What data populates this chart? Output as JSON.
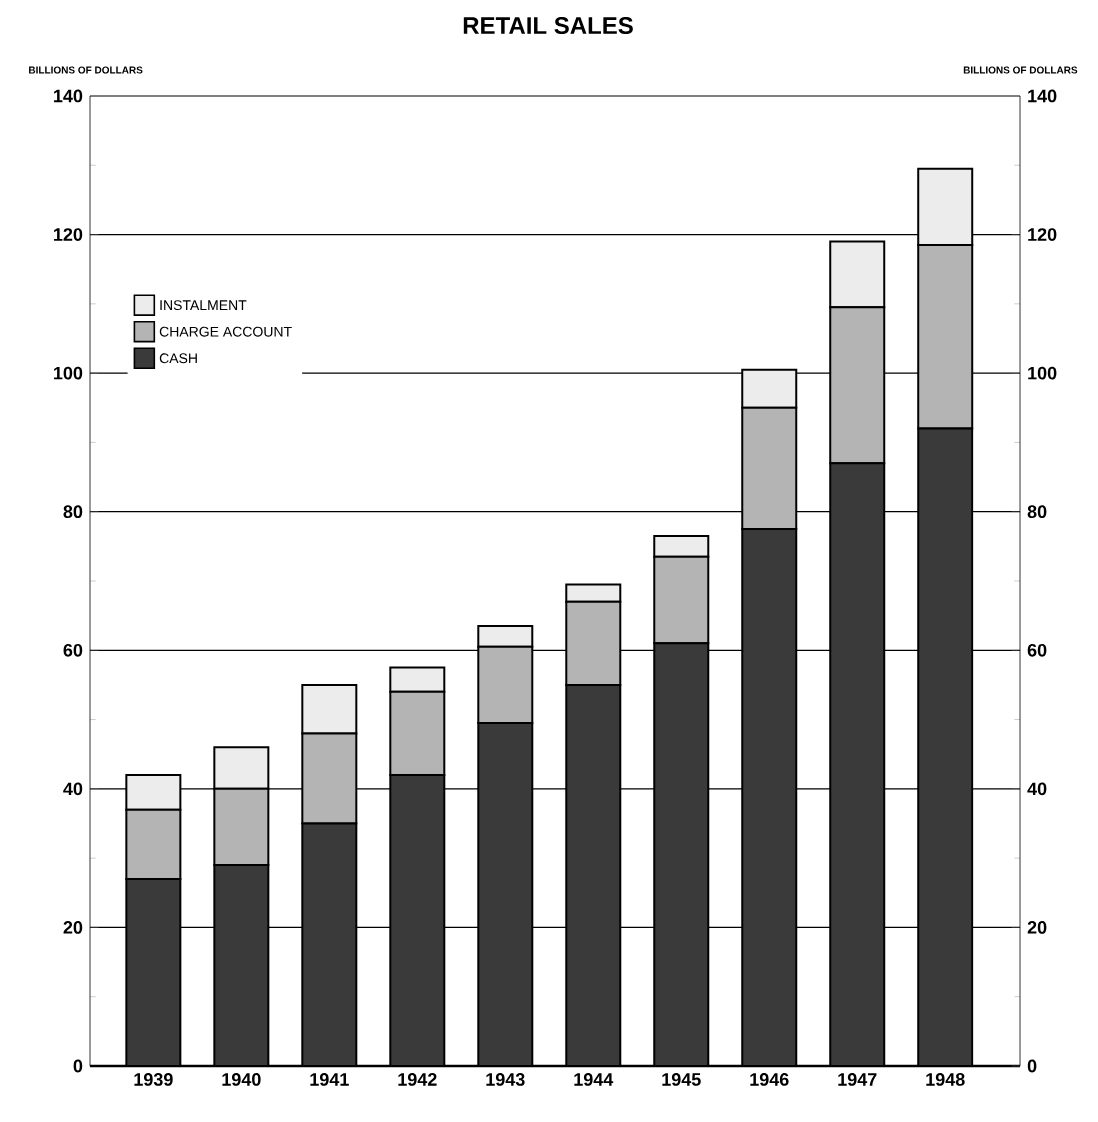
{
  "chart_data": {
    "type": "bar",
    "title": "RETAIL SALES",
    "ylabel": "BILLIONS OF DOLLARS",
    "y2label": "BILLIONS OF DOLLARS",
    "categories": [
      "1939",
      "1940",
      "1941",
      "1942",
      "1943",
      "1944",
      "1945",
      "1946",
      "1947",
      "1948"
    ],
    "stacked": true,
    "series": [
      {
        "name": "CASH",
        "color": "#3a3a3a",
        "values": [
          27,
          29,
          35,
          42,
          49.5,
          55,
          61,
          77.5,
          87,
          92
        ]
      },
      {
        "name": "CHARGE ACCOUNT",
        "color": "#b4b4b4",
        "values": [
          10,
          11,
          13,
          12,
          11,
          12,
          12.5,
          17.5,
          22.5,
          26.5
        ]
      },
      {
        "name": "INSTALMENT",
        "color": "#ececec",
        "values": [
          5,
          6,
          7,
          3.5,
          3,
          2.5,
          3,
          5.5,
          9.5,
          11
        ]
      }
    ],
    "ylim": [
      0,
      140
    ],
    "yticks": [
      0,
      20,
      40,
      60,
      80,
      100,
      120,
      140
    ],
    "y2lim": [
      0,
      140
    ],
    "y2ticks": [
      0,
      20,
      40,
      60,
      80,
      100,
      120,
      140
    ],
    "grid": "y",
    "legend": "top left"
  }
}
